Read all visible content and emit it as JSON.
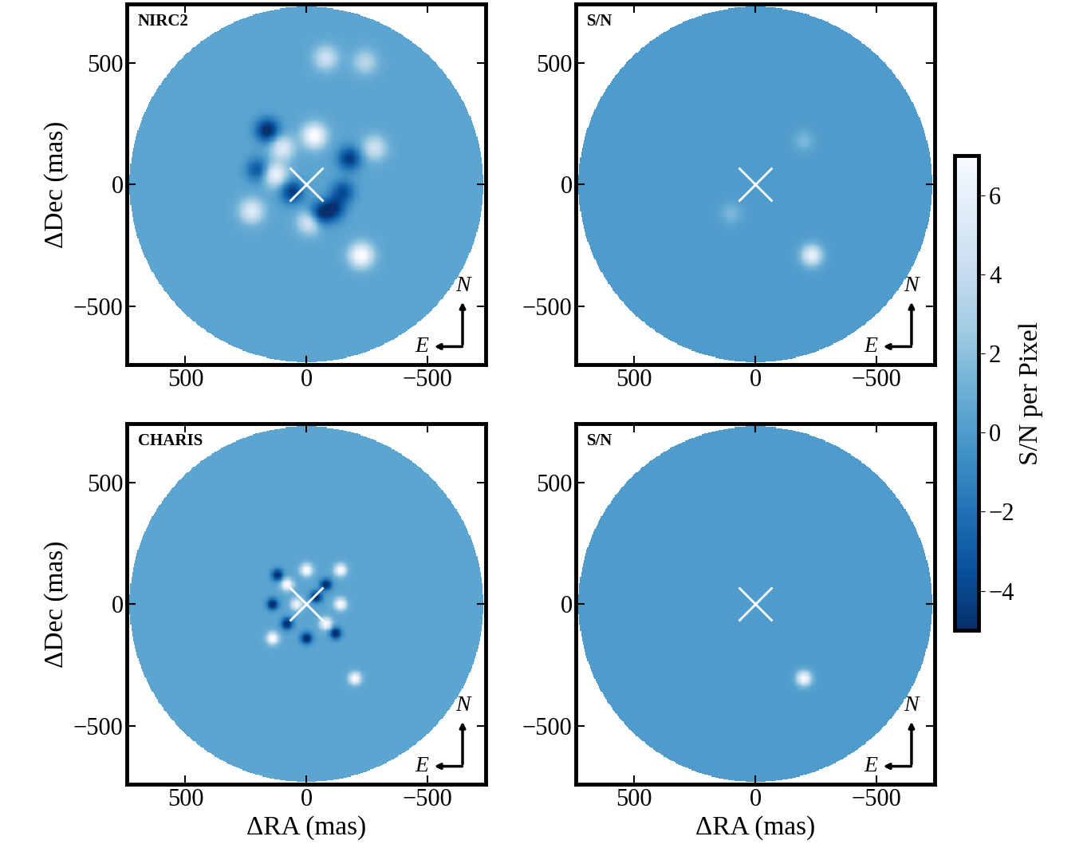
{
  "chart_data": [
    {
      "type": "image",
      "panel_label": "NIRC2",
      "xlabel": null,
      "ylabel": "ΔDec (mas)",
      "xlim": [
        740,
        -740
      ],
      "ylim": [
        -740,
        740
      ],
      "xticks": [
        {
          "value": 500,
          "label": "500"
        },
        {
          "value": 0,
          "label": "0"
        },
        {
          "value": -500,
          "label": "−500"
        }
      ],
      "yticks": [
        {
          "value": -500,
          "label": "−500"
        },
        {
          "value": 0,
          "label": "0"
        },
        {
          "value": 500,
          "label": "500"
        }
      ],
      "field_radius": 730,
      "background": 0.5,
      "psf_fwhm": 80,
      "center": {
        "x": 0,
        "y": 0
      },
      "compass": [
        "N",
        "E"
      ],
      "sources": [
        {
          "x": -226,
          "y": -291,
          "value": 7
        },
        {
          "x": -32,
          "y": 200,
          "value": 7
        },
        {
          "x": 60,
          "y": -30,
          "value": -5
        },
        {
          "x": -48,
          "y": -126,
          "value": -6
        },
        {
          "x": -110,
          "y": -100,
          "value": -5
        },
        {
          "x": 161,
          "y": 222,
          "value": -6
        },
        {
          "x": -177,
          "y": 106,
          "value": -5
        },
        {
          "x": 129,
          "y": 40,
          "value": 6
        },
        {
          "x": -16,
          "y": -152,
          "value": 6
        },
        {
          "x": 226,
          "y": -109,
          "value": 5
        },
        {
          "x": -150,
          "y": -30,
          "value": -4
        },
        {
          "x": -280,
          "y": 150,
          "value": 4
        },
        {
          "x": -242,
          "y": 503,
          "value": 3
        },
        {
          "x": -80,
          "y": 520,
          "value": 4
        },
        {
          "x": 100,
          "y": 150,
          "value": 5
        },
        {
          "x": 200,
          "y": 60,
          "value": -4
        }
      ]
    },
    {
      "type": "image",
      "panel_label": "S/N",
      "xlabel": null,
      "ylabel": null,
      "xlim": [
        740,
        -740
      ],
      "ylim": [
        -740,
        740
      ],
      "xticks": [
        {
          "value": 500,
          "label": "500"
        },
        {
          "value": 0,
          "label": "0"
        },
        {
          "value": -500,
          "label": "−500"
        }
      ],
      "yticks": [
        {
          "value": -500,
          "label": "−500"
        },
        {
          "value": 0,
          "label": "0"
        },
        {
          "value": 500,
          "label": "500"
        }
      ],
      "field_radius": 730,
      "background": 0,
      "psf_fwhm": 70,
      "center": {
        "x": 0,
        "y": 0
      },
      "compass": [
        "N",
        "E"
      ],
      "sources": [
        {
          "x": -232,
          "y": -291,
          "value": 6
        },
        {
          "x": -200,
          "y": 180,
          "value": 1.5
        },
        {
          "x": 100,
          "y": -120,
          "value": 1.5
        }
      ]
    },
    {
      "type": "image",
      "panel_label": "CHARIS",
      "xlabel": "ΔRA (mas)",
      "ylabel": "ΔDec (mas)",
      "xlim": [
        740,
        -740
      ],
      "ylim": [
        -740,
        740
      ],
      "xticks": [
        {
          "value": 500,
          "label": "500"
        },
        {
          "value": 0,
          "label": "0"
        },
        {
          "value": -500,
          "label": "−500"
        }
      ],
      "yticks": [
        {
          "value": -500,
          "label": "−500"
        },
        {
          "value": 0,
          "label": "0"
        },
        {
          "value": 500,
          "label": "500"
        }
      ],
      "field_radius": 730,
      "background": 0.5,
      "psf_fwhm": 40,
      "center": {
        "x": 0,
        "y": 0
      },
      "compass": [
        "N",
        "E"
      ],
      "sources": [
        {
          "x": -200,
          "y": -305,
          "value": 7
        },
        {
          "x": 80,
          "y": 80,
          "value": 7
        },
        {
          "x": -80,
          "y": 80,
          "value": -6
        },
        {
          "x": 80,
          "y": -80,
          "value": -6
        },
        {
          "x": -80,
          "y": -80,
          "value": 7
        },
        {
          "x": 0,
          "y": 140,
          "value": 7
        },
        {
          "x": 0,
          "y": -140,
          "value": -6
        },
        {
          "x": 140,
          "y": 0,
          "value": -6
        },
        {
          "x": -140,
          "y": 0,
          "value": 7
        },
        {
          "x": 120,
          "y": 120,
          "value": -6
        },
        {
          "x": -120,
          "y": -120,
          "value": -6
        },
        {
          "x": 140,
          "y": -140,
          "value": 7
        },
        {
          "x": -140,
          "y": 140,
          "value": 7
        },
        {
          "x": 40,
          "y": 0,
          "value": 6
        },
        {
          "x": -40,
          "y": 30,
          "value": -6
        }
      ]
    },
    {
      "type": "image",
      "panel_label": "S/N",
      "xlabel": "ΔRA (mas)",
      "ylabel": null,
      "xlim": [
        740,
        -740
      ],
      "ylim": [
        -740,
        740
      ],
      "xticks": [
        {
          "value": 500,
          "label": "500"
        },
        {
          "value": 0,
          "label": "0"
        },
        {
          "value": -500,
          "label": "−500"
        }
      ],
      "yticks": [
        {
          "value": -500,
          "label": "−500"
        },
        {
          "value": 0,
          "label": "0"
        },
        {
          "value": 500,
          "label": "500"
        }
      ],
      "field_radius": 730,
      "background": 0,
      "psf_fwhm": 50,
      "center": {
        "x": 0,
        "y": 0
      },
      "compass": [
        "N",
        "E"
      ],
      "sources": [
        {
          "x": -200,
          "y": -305,
          "value": 7
        }
      ]
    }
  ],
  "colorbar": {
    "label": "S/N per Pixel",
    "range": [
      -5,
      7
    ],
    "ticks": [
      {
        "value": -4,
        "label": "−4"
      },
      {
        "value": -2,
        "label": "−2"
      },
      {
        "value": 0,
        "label": "0"
      },
      {
        "value": 2,
        "label": "2"
      },
      {
        "value": 4,
        "label": "4"
      },
      {
        "value": 6,
        "label": "6"
      }
    ]
  }
}
